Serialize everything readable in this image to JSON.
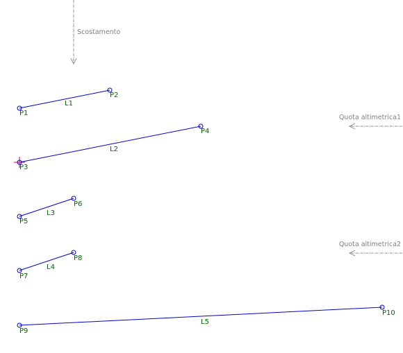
{
  "annotations": {
    "offset": "Scostamento",
    "elevation_1": "Quota altimetrica1",
    "elevation_2": "Quota altimetrica2"
  },
  "points": [
    "P1",
    "P2",
    "P3",
    "P4",
    "P5",
    "P6",
    "P7",
    "P8",
    "P9",
    "P10"
  ],
  "lines": [
    "L1",
    "L2",
    "L3",
    "L4",
    "L5"
  ]
}
